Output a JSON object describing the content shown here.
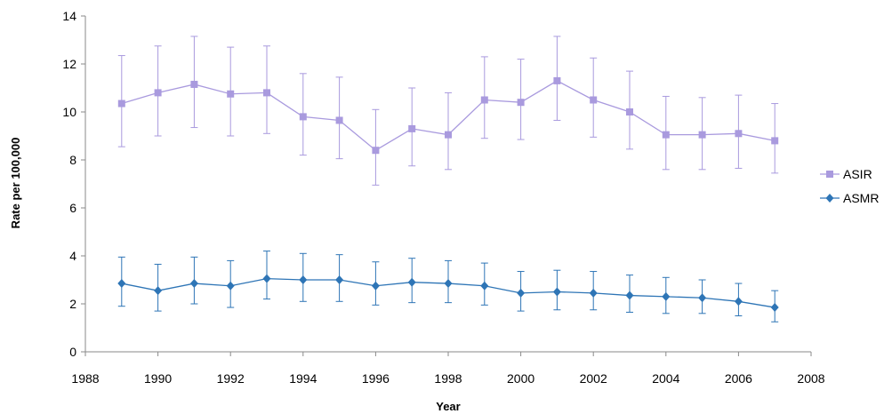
{
  "chart_data": {
    "type": "line",
    "xlabel": "Year",
    "ylabel": "Rate per 100,000",
    "xlim": [
      1988,
      2008
    ],
    "ylim": [
      0,
      14
    ],
    "x_ticks": [
      1988,
      1990,
      1992,
      1994,
      1996,
      1998,
      2000,
      2002,
      2004,
      2006,
      2008
    ],
    "y_ticks": [
      0,
      2,
      4,
      6,
      8,
      10,
      12,
      14
    ],
    "grid": false,
    "legend_position": "right",
    "error_bars": true,
    "x": [
      1989,
      1990,
      1991,
      1992,
      1993,
      1994,
      1995,
      1996,
      1997,
      1998,
      1999,
      2000,
      2001,
      2002,
      2003,
      2004,
      2005,
      2006,
      2007
    ],
    "series": [
      {
        "name": "ASIR",
        "color": "#a99ade",
        "marker": "square",
        "values": [
          10.35,
          10.8,
          11.15,
          10.75,
          10.8,
          9.8,
          9.65,
          8.4,
          9.3,
          9.05,
          10.5,
          10.4,
          11.3,
          10.5,
          10.0,
          9.05,
          9.05,
          9.1,
          8.8
        ],
        "lower": [
          8.55,
          9.0,
          9.35,
          9.0,
          9.1,
          8.2,
          8.05,
          6.95,
          7.75,
          7.6,
          8.9,
          8.85,
          9.65,
          8.95,
          8.45,
          7.6,
          7.6,
          7.65,
          7.45
        ],
        "upper": [
          12.35,
          12.75,
          13.15,
          12.7,
          12.75,
          11.6,
          11.45,
          10.1,
          11.0,
          10.8,
          12.3,
          12.2,
          13.15,
          12.25,
          11.7,
          10.65,
          10.6,
          10.7,
          10.35
        ]
      },
      {
        "name": "ASMR",
        "color": "#2e75b6",
        "marker": "diamond",
        "values": [
          2.85,
          2.55,
          2.85,
          2.75,
          3.05,
          3.0,
          3.0,
          2.75,
          2.9,
          2.85,
          2.75,
          2.45,
          2.5,
          2.45,
          2.35,
          2.3,
          2.25,
          2.1,
          1.85
        ],
        "lower": [
          1.9,
          1.7,
          2.0,
          1.85,
          2.2,
          2.1,
          2.1,
          1.95,
          2.05,
          2.05,
          1.95,
          1.7,
          1.75,
          1.75,
          1.65,
          1.6,
          1.6,
          1.5,
          1.25
        ],
        "upper": [
          3.95,
          3.65,
          3.95,
          3.8,
          4.2,
          4.1,
          4.05,
          3.75,
          3.9,
          3.8,
          3.7,
          3.35,
          3.4,
          3.35,
          3.2,
          3.1,
          3.0,
          2.85,
          2.55
        ]
      }
    ]
  }
}
